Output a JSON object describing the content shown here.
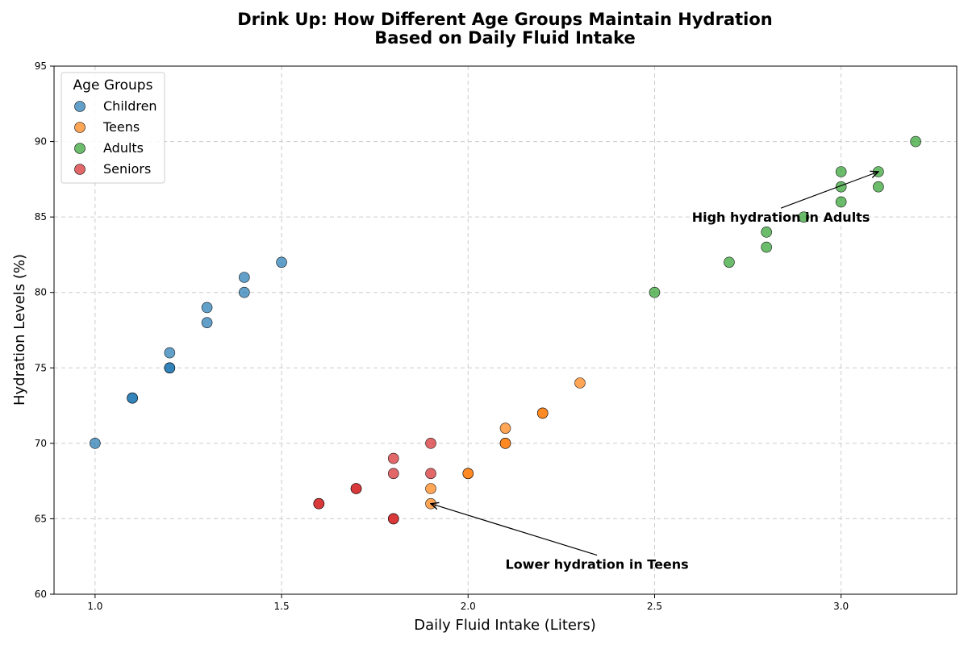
{
  "chart_data": {
    "type": "scatter",
    "title_line1": "Drink Up: How Different Age Groups Maintain Hydration",
    "title_line2": "Based on Daily Fluid Intake",
    "xlabel": "Daily Fluid Intake (Liters)",
    "ylabel": "Hydration Levels (%)",
    "xlim": [
      0.89,
      3.31
    ],
    "ylim": [
      60,
      95
    ],
    "xticks": [
      1.0,
      1.5,
      2.0,
      2.5,
      3.0
    ],
    "xtick_labels": [
      "1.0",
      "1.5",
      "2.0",
      "2.5",
      "3.0"
    ],
    "yticks": [
      60,
      65,
      70,
      75,
      80,
      85,
      90,
      95
    ],
    "ytick_labels": [
      "60",
      "65",
      "70",
      "75",
      "80",
      "85",
      "90",
      "95"
    ],
    "grid": true,
    "legend": {
      "title": "Age Groups",
      "placement": "top-left"
    },
    "series": [
      {
        "name": "Children",
        "color": "#1f77b4",
        "points": [
          [
            1.0,
            70
          ],
          [
            1.1,
            73
          ],
          [
            1.1,
            73
          ],
          [
            1.2,
            75
          ],
          [
            1.2,
            75
          ],
          [
            1.2,
            76
          ],
          [
            1.3,
            78
          ],
          [
            1.3,
            79
          ],
          [
            1.4,
            80
          ],
          [
            1.4,
            81
          ],
          [
            1.5,
            82
          ]
        ]
      },
      {
        "name": "Teens",
        "color": "#ff7f0e",
        "points": [
          [
            1.9,
            66
          ],
          [
            1.9,
            67
          ],
          [
            2.0,
            68
          ],
          [
            2.0,
            68
          ],
          [
            2.1,
            70
          ],
          [
            2.1,
            70
          ],
          [
            2.1,
            71
          ],
          [
            2.2,
            72
          ],
          [
            2.2,
            72
          ],
          [
            2.3,
            74
          ]
        ]
      },
      {
        "name": "Adults",
        "color": "#2ca02c",
        "points": [
          [
            2.5,
            80
          ],
          [
            2.7,
            82
          ],
          [
            2.8,
            83
          ],
          [
            2.8,
            84
          ],
          [
            2.9,
            85
          ],
          [
            3.0,
            86
          ],
          [
            3.0,
            87
          ],
          [
            3.0,
            88
          ],
          [
            3.1,
            87
          ],
          [
            3.1,
            88
          ],
          [
            3.2,
            90
          ]
        ]
      },
      {
        "name": "Seniors",
        "color": "#d62728",
        "points": [
          [
            1.6,
            66
          ],
          [
            1.6,
            66
          ],
          [
            1.7,
            67
          ],
          [
            1.7,
            67
          ],
          [
            1.8,
            65
          ],
          [
            1.8,
            65
          ],
          [
            1.8,
            68
          ],
          [
            1.8,
            69
          ],
          [
            1.9,
            68
          ],
          [
            1.9,
            70
          ]
        ]
      }
    ],
    "annotations": [
      {
        "text": "High hydration in Adults",
        "xy": [
          3.1,
          88
        ],
        "xytext": [
          2.6,
          85
        ]
      },
      {
        "text": "Lower hydration in Teens",
        "xy": [
          1.9,
          66
        ],
        "xytext": [
          2.1,
          62
        ]
      }
    ]
  }
}
